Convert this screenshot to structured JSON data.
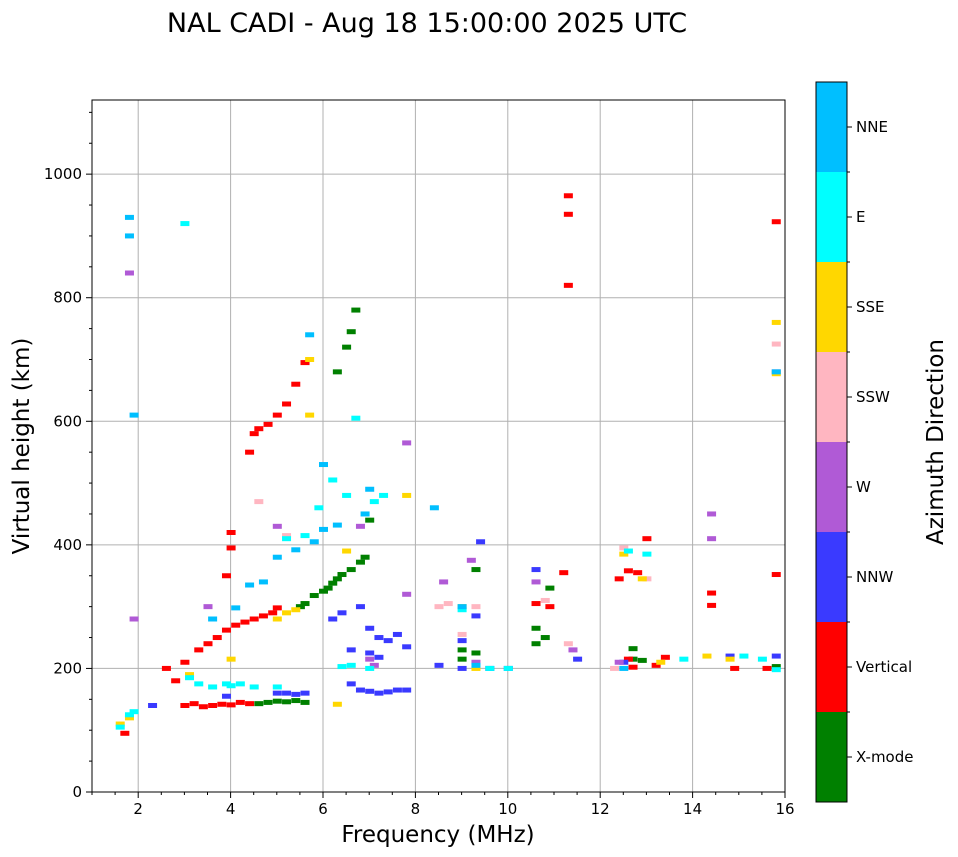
{
  "chart_data": {
    "type": "scatter",
    "title": "NAL CADI - Aug 18 15:00:00 2025 UTC",
    "xlabel": "Frequency (MHz)",
    "ylabel": "Virtual height (km)",
    "xlim": [
      1,
      16
    ],
    "ylim": [
      0,
      1120
    ],
    "xticks": [
      2,
      4,
      6,
      8,
      10,
      12,
      14,
      16
    ],
    "yticks": [
      0,
      200,
      400,
      600,
      800,
      1000
    ],
    "grid": true,
    "colorbar": {
      "label": "Azimuth Direction",
      "categories": [
        "X-mode",
        "Vertical",
        "NNW",
        "W",
        "SSW",
        "SSE",
        "E",
        "NNE"
      ],
      "colors": [
        "#008000",
        "#ff0000",
        "#3a3aff",
        "#b05ad6",
        "#ffb6c1",
        "#ffd700",
        "#00ffff",
        "#00bfff"
      ]
    },
    "series": [
      {
        "name": "X-mode",
        "points": [
          [
            4.6,
            143
          ],
          [
            4.8,
            145
          ],
          [
            5.0,
            147
          ],
          [
            5.2,
            146
          ],
          [
            5.4,
            148
          ],
          [
            5.6,
            145
          ],
          [
            5.5,
            300
          ],
          [
            5.6,
            305
          ],
          [
            5.8,
            318
          ],
          [
            6.0,
            325
          ],
          [
            6.1,
            330
          ],
          [
            6.2,
            338
          ],
          [
            6.3,
            345
          ],
          [
            6.4,
            352
          ],
          [
            6.6,
            360
          ],
          [
            6.8,
            372
          ],
          [
            6.9,
            380
          ],
          [
            6.5,
            720
          ],
          [
            6.6,
            745
          ],
          [
            6.7,
            780
          ],
          [
            6.3,
            680
          ],
          [
            7.0,
            440
          ],
          [
            9.0,
            215
          ],
          [
            9.0,
            230
          ],
          [
            9.3,
            225
          ],
          [
            9.3,
            360
          ],
          [
            10.6,
            240
          ],
          [
            10.6,
            265
          ],
          [
            10.8,
            250
          ],
          [
            10.9,
            330
          ],
          [
            12.7,
            215
          ],
          [
            12.7,
            232
          ],
          [
            12.9,
            213
          ],
          [
            15.8,
            203
          ]
        ]
      },
      {
        "name": "Vertical",
        "points": [
          [
            3.0,
            140
          ],
          [
            3.2,
            143
          ],
          [
            3.4,
            138
          ],
          [
            3.6,
            140
          ],
          [
            3.8,
            142
          ],
          [
            4.0,
            141
          ],
          [
            4.2,
            145
          ],
          [
            4.4,
            143
          ],
          [
            3.3,
            230
          ],
          [
            3.5,
            240
          ],
          [
            3.7,
            250
          ],
          [
            3.9,
            262
          ],
          [
            4.1,
            270
          ],
          [
            4.3,
            275
          ],
          [
            4.5,
            280
          ],
          [
            4.7,
            285
          ],
          [
            4.9,
            290
          ],
          [
            5.0,
            298
          ],
          [
            3.9,
            350
          ],
          [
            4.0,
            395
          ],
          [
            4.0,
            420
          ],
          [
            4.4,
            550
          ],
          [
            4.6,
            588
          ],
          [
            4.8,
            595
          ],
          [
            5.0,
            610
          ],
          [
            5.2,
            628
          ],
          [
            5.4,
            660
          ],
          [
            5.6,
            695
          ],
          [
            4.5,
            580
          ],
          [
            2.6,
            200
          ],
          [
            2.8,
            180
          ],
          [
            3.0,
            210
          ],
          [
            1.7,
            95
          ],
          [
            11.3,
            935
          ],
          [
            11.3,
            965
          ],
          [
            11.3,
            820
          ],
          [
            10.6,
            305
          ],
          [
            10.9,
            300
          ],
          [
            11.2,
            355
          ],
          [
            12.4,
            345
          ],
          [
            12.6,
            358
          ],
          [
            12.8,
            355
          ],
          [
            13.0,
            410
          ],
          [
            12.6,
            215
          ],
          [
            12.7,
            202
          ],
          [
            13.2,
            205
          ],
          [
            13.4,
            218
          ],
          [
            14.4,
            322
          ],
          [
            14.4,
            302
          ],
          [
            14.9,
            200
          ],
          [
            15.6,
            200
          ],
          [
            15.8,
            923
          ],
          [
            15.8,
            352
          ]
        ]
      },
      {
        "name": "NNW",
        "points": [
          [
            5.0,
            160
          ],
          [
            5.2,
            160
          ],
          [
            5.4,
            158
          ],
          [
            5.6,
            160
          ],
          [
            6.6,
            175
          ],
          [
            6.8,
            165
          ],
          [
            7.0,
            163
          ],
          [
            7.2,
            160
          ],
          [
            7.4,
            162
          ],
          [
            7.6,
            165
          ],
          [
            7.8,
            165
          ],
          [
            6.2,
            280
          ],
          [
            6.4,
            290
          ],
          [
            6.8,
            300
          ],
          [
            7.0,
            265
          ],
          [
            7.2,
            250
          ],
          [
            7.4,
            245
          ],
          [
            7.6,
            255
          ],
          [
            7.8,
            235
          ],
          [
            6.6,
            230
          ],
          [
            7.0,
            225
          ],
          [
            7.2,
            218
          ],
          [
            8.5,
            205
          ],
          [
            9.0,
            200
          ],
          [
            9.0,
            245
          ],
          [
            9.3,
            285
          ],
          [
            9.6,
            200
          ],
          [
            10.0,
            200
          ],
          [
            9.4,
            405
          ],
          [
            10.6,
            360
          ],
          [
            11.5,
            215
          ],
          [
            12.5,
            210
          ],
          [
            14.8,
            220
          ],
          [
            15.8,
            220
          ],
          [
            3.9,
            155
          ],
          [
            2.3,
            140
          ]
        ]
      },
      {
        "name": "W",
        "points": [
          [
            1.8,
            840
          ],
          [
            1.9,
            280
          ],
          [
            3.5,
            300
          ],
          [
            5.0,
            430
          ],
          [
            6.8,
            430
          ],
          [
            7.0,
            215
          ],
          [
            7.1,
            205
          ],
          [
            7.8,
            565
          ],
          [
            7.8,
            320
          ],
          [
            8.6,
            340
          ],
          [
            9.2,
            375
          ],
          [
            9.3,
            210
          ],
          [
            10.6,
            340
          ],
          [
            11.4,
            230
          ],
          [
            12.4,
            210
          ],
          [
            14.4,
            410
          ],
          [
            14.4,
            450
          ],
          [
            15.8,
            680
          ]
        ]
      },
      {
        "name": "SSW",
        "points": [
          [
            4.6,
            470
          ],
          [
            5.2,
            415
          ],
          [
            8.5,
            300
          ],
          [
            8.7,
            305
          ],
          [
            9.0,
            255
          ],
          [
            9.3,
            300
          ],
          [
            10.8,
            310
          ],
          [
            11.3,
            240
          ],
          [
            12.3,
            200
          ],
          [
            12.5,
            395
          ],
          [
            13.0,
            345
          ],
          [
            15.8,
            725
          ]
        ]
      },
      {
        "name": "SSE",
        "points": [
          [
            1.6,
            110
          ],
          [
            1.8,
            120
          ],
          [
            3.1,
            190
          ],
          [
            4.0,
            215
          ],
          [
            5.0,
            280
          ],
          [
            5.2,
            290
          ],
          [
            5.4,
            295
          ],
          [
            5.7,
            610
          ],
          [
            5.7,
            700
          ],
          [
            6.5,
            390
          ],
          [
            6.3,
            142
          ],
          [
            7.8,
            480
          ],
          [
            9.0,
            300
          ],
          [
            9.3,
            200
          ],
          [
            12.5,
            385
          ],
          [
            12.9,
            345
          ],
          [
            13.3,
            210
          ],
          [
            14.3,
            220
          ],
          [
            14.8,
            215
          ],
          [
            15.8,
            760
          ],
          [
            15.8,
            677
          ]
        ]
      },
      {
        "name": "E",
        "points": [
          [
            1.6,
            105
          ],
          [
            1.8,
            125
          ],
          [
            1.9,
            130
          ],
          [
            3.0,
            920
          ],
          [
            3.1,
            185
          ],
          [
            3.3,
            175
          ],
          [
            3.6,
            170
          ],
          [
            3.9,
            175
          ],
          [
            4.2,
            175
          ],
          [
            4.5,
            170
          ],
          [
            5.0,
            170
          ],
          [
            5.2,
            410
          ],
          [
            5.6,
            415
          ],
          [
            5.9,
            460
          ],
          [
            6.2,
            505
          ],
          [
            6.5,
            480
          ],
          [
            6.7,
            605
          ],
          [
            7.1,
            470
          ],
          [
            7.3,
            480
          ],
          [
            6.4,
            203
          ],
          [
            6.6,
            205
          ],
          [
            7.0,
            200
          ],
          [
            9.0,
            295
          ],
          [
            9.6,
            200
          ],
          [
            10.0,
            200
          ],
          [
            12.6,
            390
          ],
          [
            13.0,
            385
          ],
          [
            13.8,
            215
          ],
          [
            15.1,
            220
          ],
          [
            15.5,
            215
          ],
          [
            15.8,
            198
          ],
          [
            4.0,
            172
          ]
        ]
      },
      {
        "name": "NNE",
        "points": [
          [
            1.8,
            900
          ],
          [
            1.8,
            930
          ],
          [
            1.9,
            610
          ],
          [
            3.6,
            280
          ],
          [
            4.1,
            298
          ],
          [
            4.4,
            335
          ],
          [
            4.7,
            340
          ],
          [
            5.0,
            380
          ],
          [
            5.4,
            392
          ],
          [
            5.8,
            405
          ],
          [
            6.0,
            425
          ],
          [
            6.3,
            432
          ],
          [
            6.9,
            450
          ],
          [
            7.0,
            490
          ],
          [
            5.7,
            740
          ],
          [
            6.0,
            530
          ],
          [
            8.4,
            460
          ],
          [
            9.0,
            300
          ],
          [
            9.3,
            205
          ],
          [
            12.5,
            200
          ],
          [
            15.8,
            680
          ]
        ]
      }
    ]
  }
}
